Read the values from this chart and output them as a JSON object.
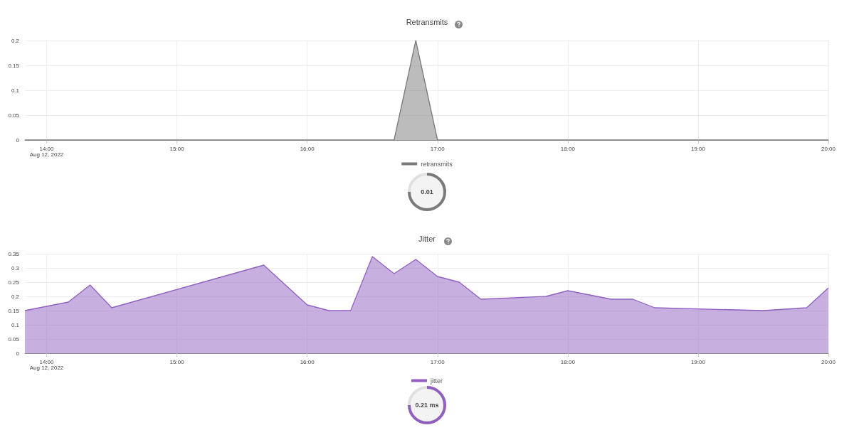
{
  "chart_data": [
    {
      "type": "area",
      "title": "Retransmits",
      "x": [
        "2022-08-12T13:50",
        "2022-08-12T16:40",
        "2022-08-12T16:50",
        "2022-08-12T17:00",
        "2022-08-12T20:00"
      ],
      "series": [
        {
          "name": "retransmits",
          "color": "#7a7a7a",
          "values": [
            0,
            0,
            0.2,
            0,
            0
          ]
        }
      ],
      "xlim": [
        "2022-08-12T13:50",
        "2022-08-12T20:00"
      ],
      "xticks": [
        {
          "value": "2022-08-12T14:00",
          "label": "14:00\nAug 12, 2022"
        },
        {
          "value": "2022-08-12T15:00",
          "label": "15:00"
        },
        {
          "value": "2022-08-12T16:00",
          "label": "16:00"
        },
        {
          "value": "2022-08-12T17:00",
          "label": "17:00"
        },
        {
          "value": "2022-08-12T18:00",
          "label": "18:00"
        },
        {
          "value": "2022-08-12T19:00",
          "label": "19:00"
        },
        {
          "value": "2022-08-12T20:00",
          "label": "20:00"
        }
      ],
      "ylim": [
        0,
        0.2
      ],
      "yticks": [
        0,
        0.05,
        0.1,
        0.15,
        0.2
      ],
      "grid": true,
      "legend": "bottom",
      "marker": "none",
      "annotations": [
        "0.01"
      ]
    },
    {
      "type": "area",
      "title": "Jitter",
      "x": [
        "2022-08-12T13:50",
        "2022-08-12T14:10",
        "2022-08-12T14:20",
        "2022-08-12T14:30",
        "2022-08-12T15:40",
        "2022-08-12T16:00",
        "2022-08-12T16:10",
        "2022-08-12T16:20",
        "2022-08-12T16:30",
        "2022-08-12T16:40",
        "2022-08-12T16:50",
        "2022-08-12T17:00",
        "2022-08-12T17:10",
        "2022-08-12T17:20",
        "2022-08-12T17:50",
        "2022-08-12T18:00",
        "2022-08-12T18:20",
        "2022-08-12T18:30",
        "2022-08-12T18:40",
        "2022-08-12T19:30",
        "2022-08-12T19:50",
        "2022-08-12T20:00"
      ],
      "series": [
        {
          "name": "jitter",
          "color": "#9060c0",
          "values": [
            0.15,
            0.18,
            0.24,
            0.16,
            0.31,
            0.17,
            0.15,
            0.15,
            0.34,
            0.28,
            0.33,
            0.27,
            0.25,
            0.19,
            0.2,
            0.22,
            0.19,
            0.19,
            0.16,
            0.15,
            0.16,
            0.23
          ]
        }
      ],
      "xlim": [
        "2022-08-12T13:50",
        "2022-08-12T20:00"
      ],
      "xticks": [
        {
          "value": "2022-08-12T14:00",
          "label": "14:00\nAug 12, 2022"
        },
        {
          "value": "2022-08-12T15:00",
          "label": "15:00"
        },
        {
          "value": "2022-08-12T16:00",
          "label": "16:00"
        },
        {
          "value": "2022-08-12T17:00",
          "label": "17:00"
        },
        {
          "value": "2022-08-12T18:00",
          "label": "18:00"
        },
        {
          "value": "2022-08-12T19:00",
          "label": "19:00"
        },
        {
          "value": "2022-08-12T20:00",
          "label": "20:00"
        }
      ],
      "ylim": [
        0,
        0.35
      ],
      "yticks": [
        0,
        0.05,
        0.1,
        0.15,
        0.2,
        0.25,
        0.3,
        0.35
      ],
      "grid": true,
      "legend": "bottom",
      "marker": "none",
      "annotations": [
        "0.21 ms"
      ]
    }
  ]
}
